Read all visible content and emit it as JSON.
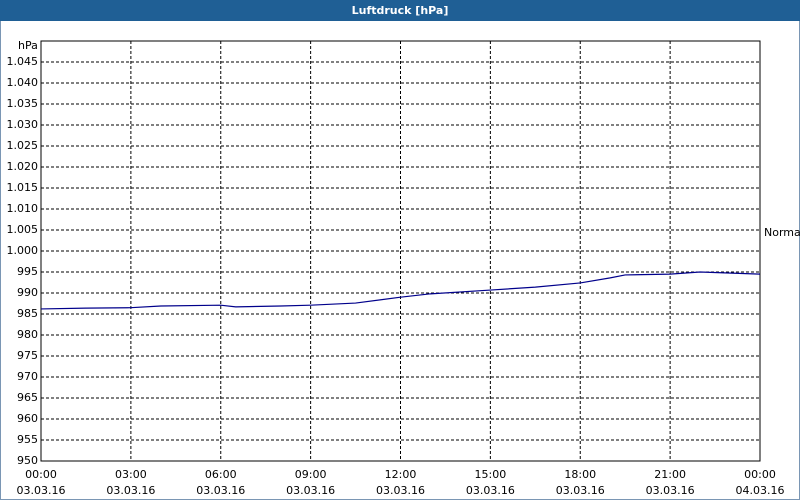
{
  "chart_data": {
    "type": "line",
    "title": "Luftdruck [hPa]",
    "y_label": "hPa",
    "annotation": "Normal",
    "x": [
      0,
      1.5,
      3,
      4,
      6,
      6.5,
      8,
      9,
      10.5,
      12,
      13,
      15,
      16.5,
      18,
      19,
      19.5,
      21,
      22,
      24
    ],
    "series": [
      {
        "name": "Luftdruck",
        "color": "#00008b",
        "values": [
          986.2,
          986.4,
          986.5,
          986.9,
          987.1,
          986.7,
          986.9,
          987.1,
          987.6,
          989.0,
          989.8,
          990.7,
          991.4,
          992.4,
          993.6,
          994.3,
          994.5,
          995.0,
          994.5
        ]
      }
    ],
    "xlim": [
      0,
      24
    ],
    "xticks": [
      {
        "value": 0,
        "label": "00:00",
        "date": "03.03.16"
      },
      {
        "value": 3,
        "label": "03:00",
        "date": "03.03.16"
      },
      {
        "value": 6,
        "label": "06:00",
        "date": "03.03.16"
      },
      {
        "value": 9,
        "label": "09:00",
        "date": "03.03.16"
      },
      {
        "value": 12,
        "label": "12:00",
        "date": "03.03.16"
      },
      {
        "value": 15,
        "label": "15:00",
        "date": "03.03.16"
      },
      {
        "value": 18,
        "label": "18:00",
        "date": "03.03.16"
      },
      {
        "value": 21,
        "label": "21:00",
        "date": "03.03.16"
      },
      {
        "value": 24,
        "label": "00:00",
        "date": "04.03.16"
      }
    ],
    "ylim": [
      950,
      1050
    ],
    "yticks": [
      950,
      955,
      960,
      965,
      970,
      975,
      980,
      985,
      990,
      995,
      {
        "value": 1000,
        "label": "1.000"
      },
      {
        "value": 1005,
        "label": "1.005"
      },
      {
        "value": 1010,
        "label": "1.010"
      },
      {
        "value": 1015,
        "label": "1.015"
      },
      {
        "value": 1020,
        "label": "1.020"
      },
      {
        "value": 1025,
        "label": "1.025"
      },
      {
        "value": 1030,
        "label": "1.030"
      },
      {
        "value": 1035,
        "label": "1.035"
      },
      {
        "value": 1040,
        "label": "1.040"
      },
      {
        "value": 1045,
        "label": "1.045"
      }
    ],
    "grid": true
  }
}
